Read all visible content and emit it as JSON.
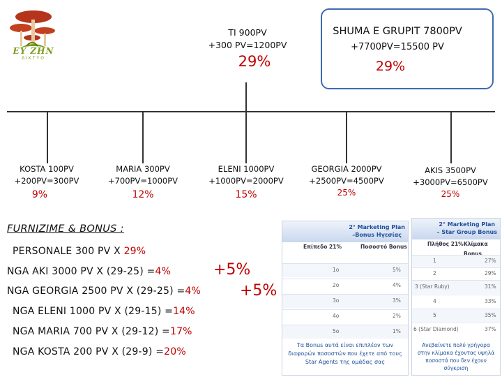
{
  "logo": {
    "text": "EY ZHN",
    "subtext": "ΔΙΚΤΥΟ",
    "colors": {
      "mushroom_cap": "#b5341c",
      "stem": "#e8c9a0",
      "leaf": "#7a9b1c"
    }
  },
  "top": {
    "ti_line1": "TI 900PV",
    "ti_line2": "+300 PV=1200PV",
    "ti_pct": "29%",
    "shuma_title": "SHUMA E GRUPIT 7800PV",
    "shuma_sub": "+7700PV=15500 PV",
    "shuma_pct": "29%"
  },
  "nodes": [
    {
      "name": "KOSTA 100PV",
      "calc": "+200PV=300PV",
      "pct": "9%"
    },
    {
      "name": "MARIA 300PV",
      "calc": "+700PV=1000PV",
      "pct": "12%"
    },
    {
      "name": "ELENI 1000PV",
      "calc": "+1000PV=2000PV",
      "pct": "15%"
    },
    {
      "name": "GEORGIA 2000PV",
      "calc": "+2500PV=4500PV",
      "pct": "25%"
    },
    {
      "name": "AKIS 3500PV",
      "calc": "+3000PV=6500PV",
      "pct": "25%"
    }
  ],
  "bonus": {
    "title": "FURNIZIME  & BONUS :",
    "lines": [
      {
        "text": "PERSONALE 300 PV X  ",
        "value": "29%"
      },
      {
        "text": "NGA AKI 3000 PV  X (29-25) =",
        "value": "4%"
      },
      {
        "text": "NGA GEORGIA 2500 PV  X (29-25) =",
        "value": "4%"
      },
      {
        "text": "NGA ELENI 1000 PV  X (29-15) =",
        "value": "14%"
      },
      {
        "text": "NGA MARIA 700 PV  X (29-12) =",
        "value": "17%"
      },
      {
        "text": "NGA KOSTA 200 PV  X (29-9) =",
        "value": "20%"
      }
    ],
    "plus1": "+5%",
    "plus2": "+5%"
  },
  "table1": {
    "title_l1": "2° Marketing Plan",
    "title_l2": "–Bonus Ηγεσίας",
    "col1": "Επίπεδο 21%",
    "col2": "Ποσοστό Bonus",
    "rows": [
      {
        "level": "1o",
        "pct": "5%"
      },
      {
        "level": "2o",
        "pct": "4%"
      },
      {
        "level": "3o",
        "pct": "3%"
      },
      {
        "level": "4o",
        "pct": "2%"
      },
      {
        "level": "5o",
        "pct": "1%"
      }
    ],
    "footer": "Τα Bonus αυτά είναι επιπλέον των διαφορών ποσοστών που έχετε από τους Star Agents της ομάδας σας"
  },
  "table2": {
    "title_l1": "2° Marketing Plan",
    "title_l2": "– Star Group Bonus",
    "col1": "Πλήθος 21%",
    "col2": "Κλίμακα Bonus",
    "rows": [
      {
        "level": "1",
        "pct": "27%"
      },
      {
        "level": "2",
        "pct": "29%"
      },
      {
        "level": "3 (Star Ruby)",
        "pct": "31%"
      },
      {
        "level": "4",
        "pct": "33%"
      },
      {
        "level": "5",
        "pct": "35%"
      },
      {
        "level": "6 (Star Diamond)",
        "pct": "37%"
      }
    ],
    "footer": "Ανεβαίνετε πολύ γρήγορα στην κλίμακα έχοντας υψηλά ποσοστά που δεν έχουν σύγκριση"
  }
}
